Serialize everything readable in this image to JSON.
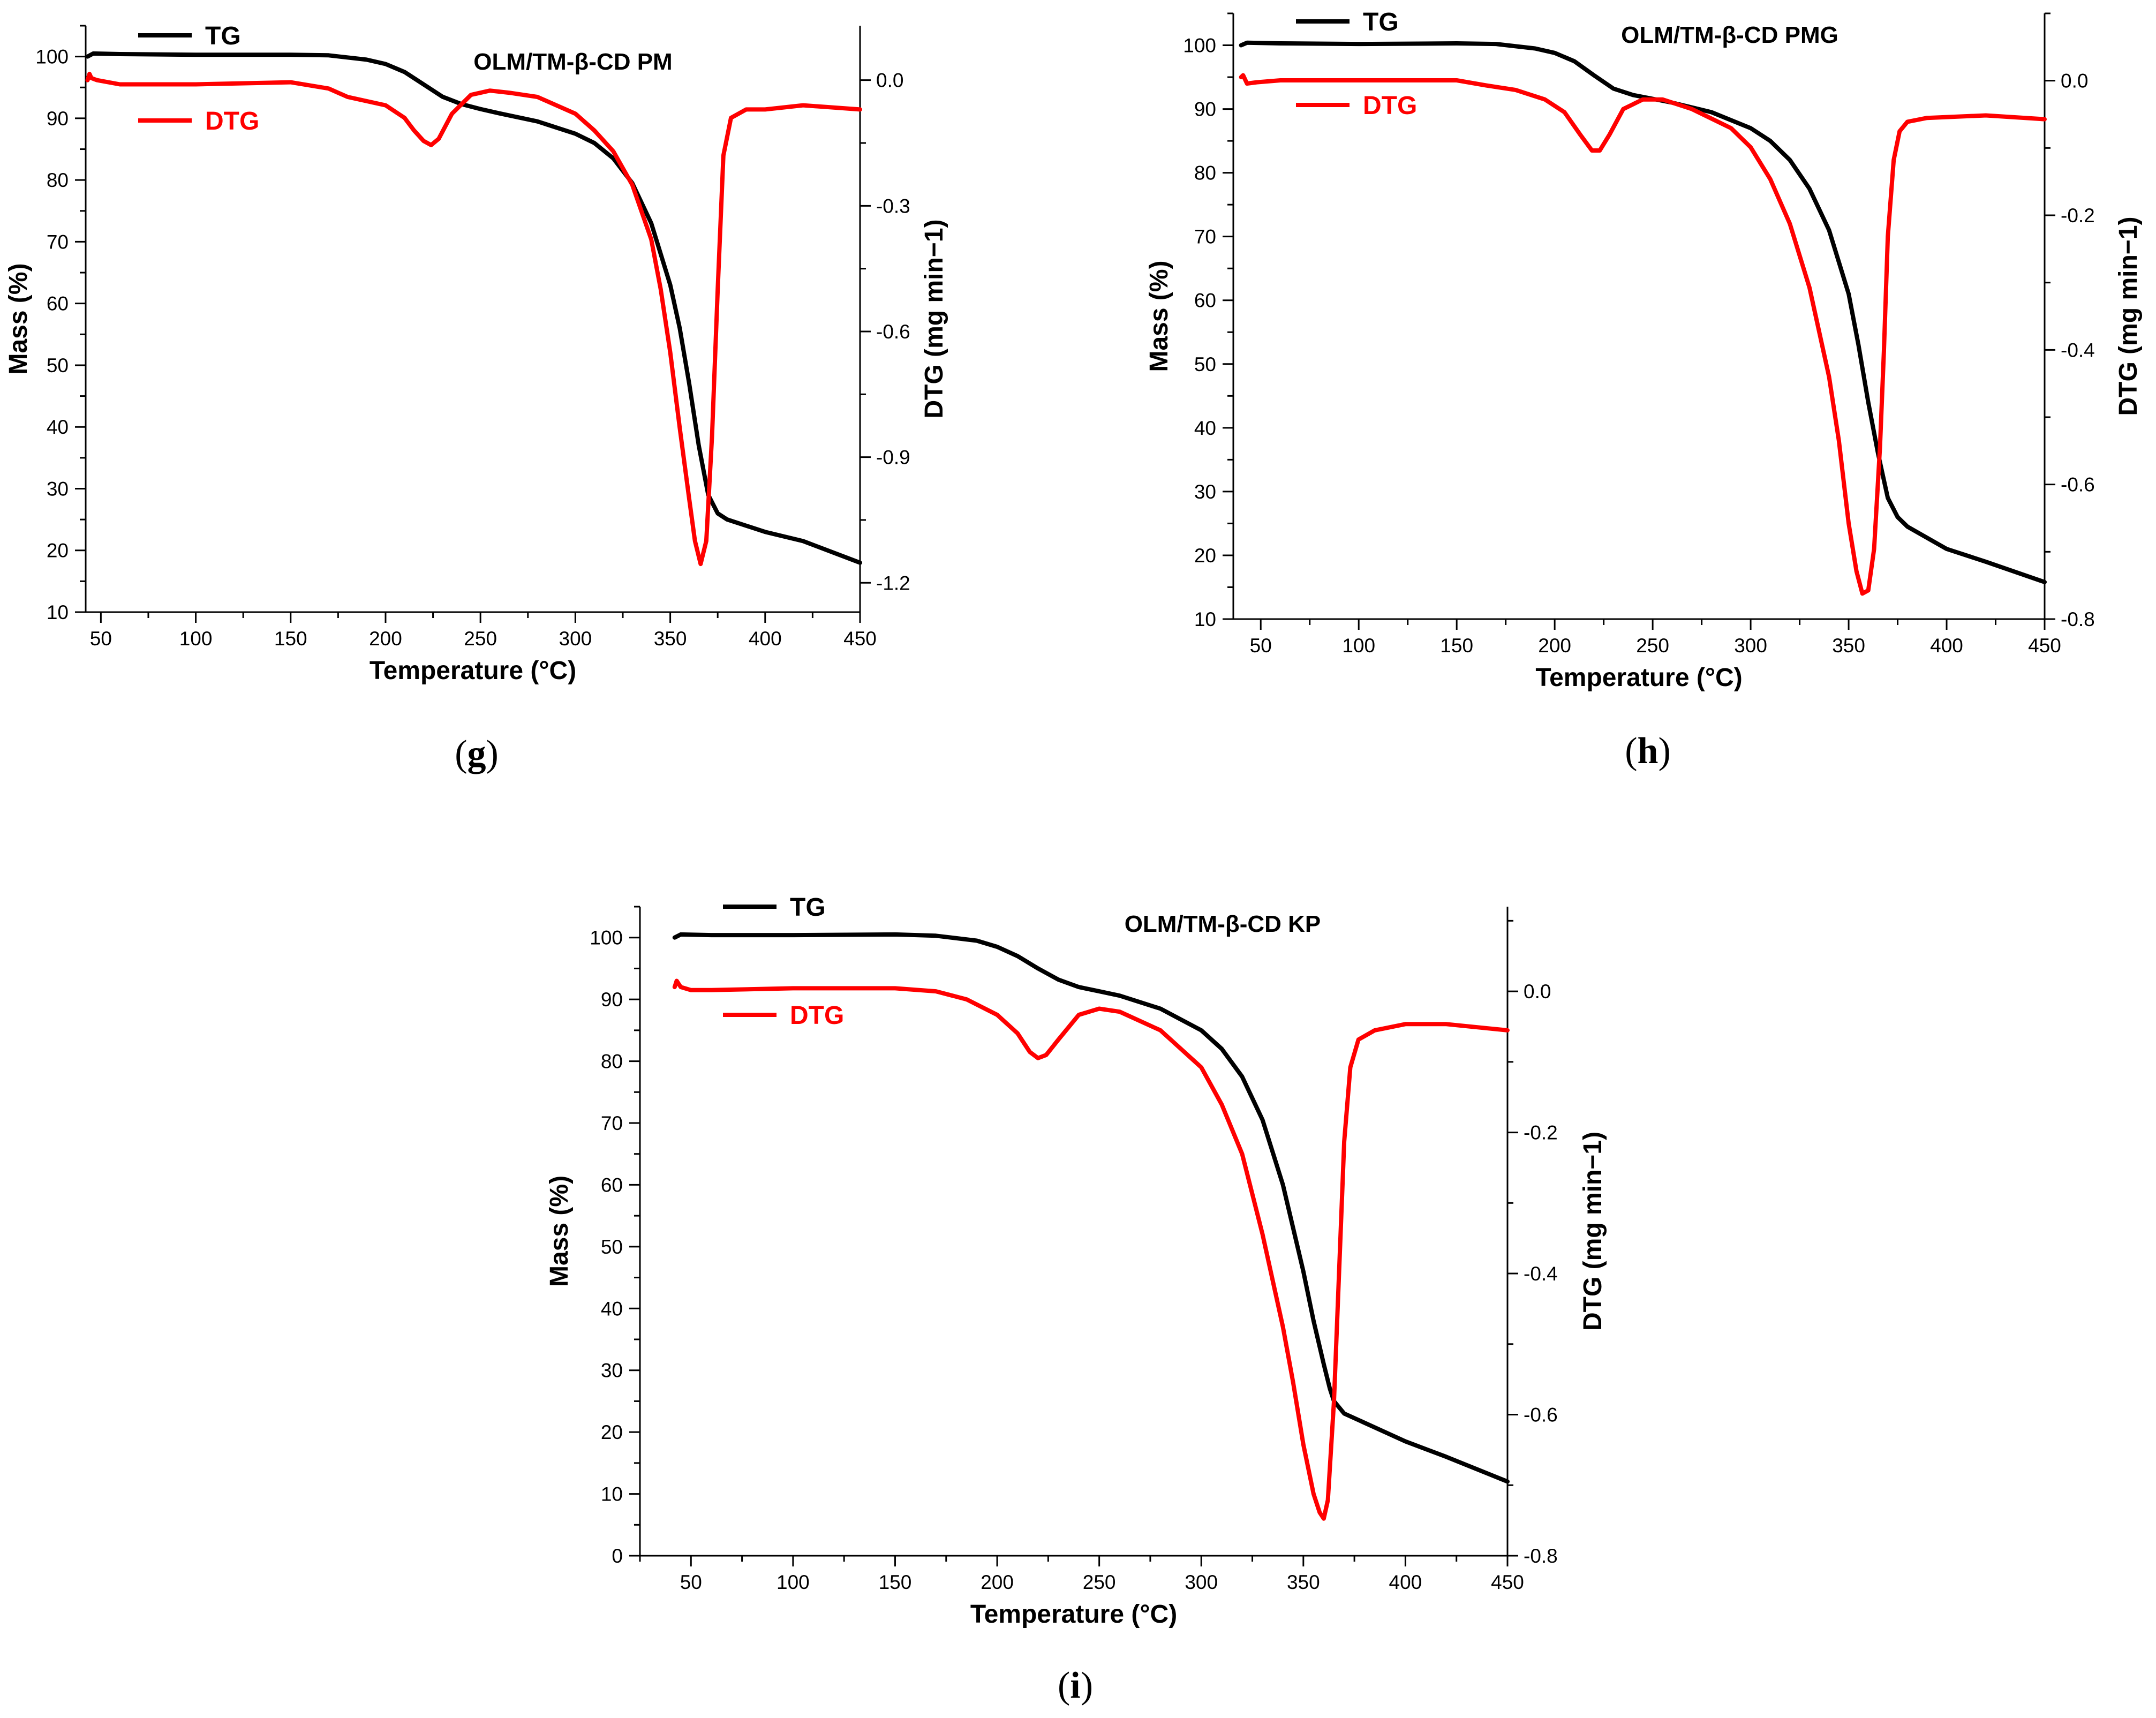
{
  "chart_data": [
    {
      "type": "line",
      "panel_label": "g",
      "title": "OLM/TM-β-CD PM",
      "xlabel": "Temperature (°C)",
      "ylabel_left": "Mass (%)",
      "ylabel_right": "DTG (mg min−1)",
      "xlim": [
        42,
        450
      ],
      "ylim_left": [
        10,
        105
      ],
      "ylim_right": [
        -1.27,
        0.13
      ],
      "x_ticks": [
        50,
        100,
        150,
        200,
        250,
        300,
        350,
        400,
        450
      ],
      "y_left_ticks": [
        10,
        20,
        30,
        40,
        50,
        60,
        70,
        80,
        90,
        100
      ],
      "y_right_ticks": [
        "0.0",
        "-0.3",
        "-0.6",
        "-0.9",
        "-1.2"
      ],
      "series": [
        {
          "name": "TG",
          "axis": "left",
          "color": "#000000",
          "x": [
            43,
            46,
            60,
            100,
            150,
            170,
            190,
            200,
            210,
            220,
            230,
            240,
            250,
            260,
            280,
            300,
            310,
            320,
            330,
            340,
            350,
            355,
            360,
            365,
            370,
            375,
            380,
            400,
            420,
            450
          ],
          "y": [
            100,
            100.5,
            100.4,
            100.3,
            100.3,
            100.2,
            99.5,
            98.8,
            97.5,
            95.5,
            93.5,
            92.3,
            91.5,
            90.8,
            89.5,
            87.5,
            86,
            83.5,
            79.5,
            73,
            63,
            56,
            47,
            37,
            29,
            26,
            25,
            23,
            21.5,
            18
          ]
        },
        {
          "name": "DTG",
          "axis": "right",
          "color": "#ff0000",
          "x": [
            43,
            44,
            45,
            48,
            60,
            100,
            150,
            170,
            180,
            200,
            210,
            215,
            220,
            224,
            228,
            235,
            245,
            255,
            265,
            280,
            300,
            310,
            320,
            330,
            340,
            345,
            350,
            355,
            360,
            363,
            366,
            369,
            372,
            375,
            378,
            382,
            390,
            400,
            420,
            450
          ],
          "y": [
            0.0,
            0.015,
            0.005,
            0.0,
            -0.01,
            -0.01,
            -0.005,
            -0.02,
            -0.04,
            -0.06,
            -0.09,
            -0.12,
            -0.145,
            -0.155,
            -0.14,
            -0.08,
            -0.035,
            -0.025,
            -0.03,
            -0.04,
            -0.08,
            -0.12,
            -0.17,
            -0.25,
            -0.38,
            -0.5,
            -0.65,
            -0.83,
            -1.0,
            -1.1,
            -1.155,
            -1.1,
            -0.85,
            -0.5,
            -0.18,
            -0.09,
            -0.07,
            -0.07,
            -0.06,
            -0.07
          ]
        }
      ]
    },
    {
      "type": "line",
      "panel_label": "h",
      "title": "OLM/TM-β-CD PMG",
      "xlabel": "Temperature (°C)",
      "ylabel_left": "Mass (%)",
      "ylabel_right": "DTG (mg min−1)",
      "xlim": [
        36,
        450
      ],
      "ylim_left": [
        10,
        105
      ],
      "ylim_right": [
        -0.8,
        0.1
      ],
      "x_ticks": [
        50,
        100,
        150,
        200,
        250,
        300,
        350,
        400,
        450
      ],
      "y_left_ticks": [
        10,
        20,
        30,
        40,
        50,
        60,
        70,
        80,
        90,
        100
      ],
      "y_right_ticks": [
        "0.0",
        "-0.2",
        "-0.4",
        "-0.6",
        "-0.8"
      ],
      "series": [
        {
          "name": "TG",
          "axis": "left",
          "color": "#000000",
          "x": [
            40,
            43,
            60,
            100,
            150,
            170,
            190,
            200,
            210,
            220,
            230,
            240,
            250,
            260,
            280,
            300,
            310,
            320,
            330,
            340,
            350,
            355,
            360,
            365,
            370,
            375,
            380,
            400,
            420,
            450
          ],
          "y": [
            100,
            100.4,
            100.3,
            100.2,
            100.3,
            100.2,
            99.5,
            98.8,
            97.5,
            95.3,
            93.2,
            92.2,
            91.6,
            91,
            89.5,
            87,
            85,
            82,
            77.5,
            71,
            61,
            53,
            44,
            36,
            29,
            26,
            24.5,
            21,
            19,
            15.8
          ]
        },
        {
          "name": "DTG",
          "axis": "left_scaled",
          "color": "#ff0000",
          "x": [
            40,
            41,
            43,
            48,
            60,
            100,
            150,
            165,
            180,
            195,
            205,
            213,
            219,
            223,
            228,
            235,
            245,
            255,
            270,
            290,
            300,
            310,
            320,
            330,
            340,
            345,
            350,
            354,
            357,
            360,
            363,
            366,
            368,
            370,
            373,
            376,
            380,
            390,
            420,
            450
          ],
          "y": [
            95,
            95.3,
            94,
            94.2,
            94.5,
            94.5,
            94.5,
            93.7,
            93,
            91.5,
            89.5,
            86,
            83.5,
            83.5,
            86,
            90,
            91.5,
            91.5,
            90,
            87,
            84,
            79,
            72,
            62,
            48,
            38,
            25,
            17.5,
            14,
            14.5,
            21,
            37,
            52,
            70,
            82,
            86.5,
            88,
            88.6,
            89,
            88.4
          ]
        }
      ]
    },
    {
      "type": "line",
      "panel_label": "i",
      "title": "OLM/TM-β-CD KP",
      "xlabel": "Temperature (°C)",
      "ylabel_left": "Mass (%)",
      "ylabel_right": "DTG (mg min−1)",
      "xlim": [
        25,
        450
      ],
      "ylim_left": [
        0,
        105
      ],
      "ylim_right": [
        -0.8,
        0.12
      ],
      "x_ticks": [
        50,
        100,
        150,
        200,
        250,
        300,
        350,
        400,
        450
      ],
      "y_left_ticks": [
        0,
        10,
        20,
        30,
        40,
        50,
        60,
        70,
        80,
        90,
        100
      ],
      "y_right_ticks": [
        "0.0",
        "-0.2",
        "-0.4",
        "-0.6",
        "-0.8"
      ],
      "series": [
        {
          "name": "TG",
          "axis": "left",
          "color": "#000000",
          "x": [
            42,
            45,
            60,
            100,
            150,
            170,
            190,
            200,
            210,
            220,
            230,
            240,
            250,
            260,
            280,
            300,
            310,
            320,
            330,
            340,
            350,
            355,
            360,
            363,
            365,
            370,
            380,
            400,
            420,
            450
          ],
          "y": [
            100,
            100.5,
            100.4,
            100.4,
            100.5,
            100.3,
            99.5,
            98.5,
            97,
            95,
            93.2,
            92,
            91.3,
            90.6,
            88.5,
            85,
            82,
            77.5,
            70.5,
            60,
            46,
            38,
            31,
            27,
            25,
            23,
            21.5,
            18.5,
            16,
            12
          ]
        },
        {
          "name": "DTG",
          "axis": "left_scaled",
          "color": "#ff0000",
          "x": [
            42,
            43,
            45,
            50,
            60,
            100,
            150,
            170,
            185,
            200,
            210,
            216,
            220,
            224,
            230,
            240,
            250,
            260,
            280,
            300,
            310,
            320,
            330,
            340,
            345,
            350,
            355,
            358,
            360,
            362,
            365,
            368,
            370,
            373,
            377,
            385,
            400,
            420,
            450
          ],
          "y": [
            92,
            93,
            92,
            91.5,
            91.5,
            91.8,
            91.8,
            91.3,
            90,
            87.5,
            84.5,
            81.5,
            80.5,
            81,
            83.5,
            87.5,
            88.5,
            88,
            85,
            79,
            73,
            65,
            52,
            37,
            28,
            18,
            10,
            7,
            6,
            9,
            25,
            50,
            67,
            79,
            83.5,
            85,
            86,
            86,
            85
          ]
        }
      ]
    }
  ]
}
